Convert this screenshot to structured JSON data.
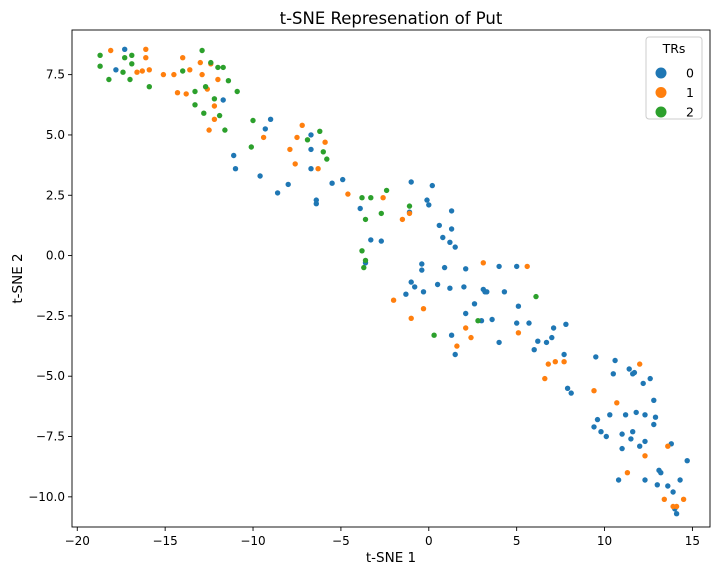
{
  "chart_data": {
    "type": "scatter",
    "title": "t-SNE Represenation of Put",
    "xlabel": "t-SNE 1",
    "ylabel": "t-SNE 2",
    "xlim": [
      -20.3,
      16.0
    ],
    "ylim": [
      -11.25,
      9.35
    ],
    "xticks": [
      -20,
      -15,
      -10,
      -5,
      0,
      5,
      10,
      15
    ],
    "xtick_labels": [
      "−20",
      "−15",
      "−10",
      "−5",
      "0",
      "5",
      "10",
      "15"
    ],
    "yticks": [
      -10.0,
      -7.5,
      -5.0,
      -2.5,
      0.0,
      2.5,
      5.0,
      7.5
    ],
    "ytick_labels": [
      "−10.0",
      "−7.5",
      "−5.0",
      "−2.5",
      "0.0",
      "2.5",
      "5.0",
      "7.5"
    ],
    "grid": false,
    "legend": {
      "title": "TRs",
      "position": "top-right"
    },
    "series": [
      {
        "name": "0",
        "color": "#1f77b4",
        "points": [
          [
            -17.3,
            8.55
          ],
          [
            -17.8,
            7.7
          ],
          [
            -11.7,
            6.45
          ],
          [
            -11.1,
            4.15
          ],
          [
            -11.0,
            3.6
          ],
          [
            -9.6,
            3.3
          ],
          [
            -9.0,
            5.65
          ],
          [
            -9.3,
            5.25
          ],
          [
            -8.6,
            2.6
          ],
          [
            -8.0,
            2.95
          ],
          [
            -6.7,
            5.0
          ],
          [
            -6.7,
            4.4
          ],
          [
            -6.7,
            3.6
          ],
          [
            -6.4,
            2.15
          ],
          [
            -6.4,
            2.3
          ],
          [
            -5.5,
            3.0
          ],
          [
            -4.9,
            3.15
          ],
          [
            -3.9,
            1.95
          ],
          [
            -3.3,
            0.65
          ],
          [
            -2.7,
            0.6
          ],
          [
            -3.6,
            -0.3
          ],
          [
            -1.3,
            -1.6
          ],
          [
            -1.0,
            -1.1
          ],
          [
            -0.8,
            -1.3
          ],
          [
            -0.4,
            -0.6
          ],
          [
            -0.3,
            -1.5
          ],
          [
            -1.1,
            1.8
          ],
          [
            -1.0,
            3.05
          ],
          [
            0.2,
            2.9
          ],
          [
            -0.1,
            2.3
          ],
          [
            0.0,
            2.1
          ],
          [
            0.6,
            1.25
          ],
          [
            0.8,
            0.75
          ],
          [
            1.3,
            1.1
          ],
          [
            1.3,
            1.85
          ],
          [
            1.2,
            0.55
          ],
          [
            1.5,
            0.35
          ],
          [
            0.9,
            -0.5
          ],
          [
            -0.4,
            -0.35
          ],
          [
            0.5,
            -1.2
          ],
          [
            1.2,
            -1.35
          ],
          [
            2.1,
            -0.55
          ],
          [
            2.0,
            -1.3
          ],
          [
            2.1,
            -2.4
          ],
          [
            2.6,
            -2.0
          ],
          [
            3.0,
            -2.7
          ],
          [
            3.2,
            -1.5
          ],
          [
            3.1,
            -1.4
          ],
          [
            3.3,
            -1.5
          ],
          [
            3.6,
            -2.65
          ],
          [
            4.0,
            -0.45
          ],
          [
            4.3,
            -1.5
          ],
          [
            5.0,
            -0.45
          ],
          [
            5.1,
            -2.1
          ],
          [
            5.0,
            -2.8
          ],
          [
            5.7,
            -2.8
          ],
          [
            6.0,
            -3.9
          ],
          [
            6.2,
            -3.55
          ],
          [
            6.7,
            -3.6
          ],
          [
            7.0,
            -3.4
          ],
          [
            7.1,
            -3.0
          ],
          [
            7.8,
            -2.85
          ],
          [
            7.7,
            -4.1
          ],
          [
            7.9,
            -5.5
          ],
          [
            8.1,
            -5.7
          ],
          [
            4.0,
            -3.6
          ],
          [
            1.3,
            -3.3
          ],
          [
            1.5,
            -4.1
          ],
          [
            9.5,
            -4.2
          ],
          [
            9.4,
            -7.1
          ],
          [
            9.6,
            -6.8
          ],
          [
            9.8,
            -7.3
          ],
          [
            10.1,
            -7.5
          ],
          [
            10.3,
            -6.6
          ],
          [
            10.5,
            -4.9
          ],
          [
            10.6,
            -4.35
          ],
          [
            10.8,
            -9.3
          ],
          [
            11.0,
            -7.4
          ],
          [
            11.0,
            -8.0
          ],
          [
            11.2,
            -6.6
          ],
          [
            11.4,
            -4.7
          ],
          [
            11.6,
            -4.9
          ],
          [
            11.5,
            -7.6
          ],
          [
            11.6,
            -7.3
          ],
          [
            11.7,
            -4.85
          ],
          [
            11.8,
            -6.5
          ],
          [
            12.0,
            -7.9
          ],
          [
            12.2,
            -5.3
          ],
          [
            12.3,
            -7.7
          ],
          [
            12.3,
            -9.3
          ],
          [
            12.3,
            -6.6
          ],
          [
            12.6,
            -5.1
          ],
          [
            12.8,
            -7.0
          ],
          [
            12.8,
            -6.0
          ],
          [
            12.9,
            -6.7
          ],
          [
            13.1,
            -8.9
          ],
          [
            13.2,
            -9.0
          ],
          [
            13.0,
            -9.5
          ],
          [
            13.6,
            -9.55
          ],
          [
            13.8,
            -7.8
          ],
          [
            13.9,
            -9.8
          ],
          [
            14.0,
            -10.5
          ],
          [
            14.1,
            -10.7
          ],
          [
            14.3,
            -9.3
          ],
          [
            14.7,
            -8.5
          ]
        ]
      },
      {
        "name": "1",
        "color": "#ff7f0e",
        "points": [
          [
            -18.1,
            8.5
          ],
          [
            -16.6,
            7.6
          ],
          [
            -16.3,
            7.65
          ],
          [
            -16.1,
            8.55
          ],
          [
            -16.1,
            8.2
          ],
          [
            -15.9,
            7.7
          ],
          [
            -15.1,
            7.5
          ],
          [
            -14.5,
            7.5
          ],
          [
            -14.3,
            6.75
          ],
          [
            -14.0,
            8.2
          ],
          [
            -13.8,
            6.7
          ],
          [
            -13.6,
            7.7
          ],
          [
            -13.0,
            8.0
          ],
          [
            -12.9,
            7.5
          ],
          [
            -12.6,
            6.9
          ],
          [
            -12.5,
            5.2
          ],
          [
            -12.2,
            6.2
          ],
          [
            -12.2,
            5.65
          ],
          [
            -12.0,
            7.3
          ],
          [
            -12.4,
            7.95
          ],
          [
            -9.4,
            4.9
          ],
          [
            -7.9,
            4.4
          ],
          [
            -7.6,
            3.8
          ],
          [
            -7.5,
            4.9
          ],
          [
            -7.2,
            5.4
          ],
          [
            -6.3,
            3.6
          ],
          [
            -5.9,
            4.7
          ],
          [
            -4.6,
            2.55
          ],
          [
            -2.6,
            2.4
          ],
          [
            -1.5,
            1.5
          ],
          [
            -1.1,
            1.75
          ],
          [
            -2.0,
            -1.85
          ],
          [
            -1.0,
            -2.6
          ],
          [
            -0.3,
            -2.2
          ],
          [
            1.6,
            -3.75
          ],
          [
            2.1,
            -3.0
          ],
          [
            2.4,
            -3.4
          ],
          [
            3.1,
            -0.3
          ],
          [
            5.1,
            -3.2
          ],
          [
            5.6,
            -0.45
          ],
          [
            6.6,
            -5.1
          ],
          [
            6.8,
            -4.5
          ],
          [
            7.2,
            -4.4
          ],
          [
            7.7,
            -4.4
          ],
          [
            9.4,
            -5.6
          ],
          [
            10.7,
            -6.1
          ],
          [
            11.3,
            -9.0
          ],
          [
            12.0,
            -4.5
          ],
          [
            12.3,
            -8.3
          ],
          [
            13.4,
            -10.1
          ],
          [
            13.6,
            -7.9
          ],
          [
            13.9,
            -10.4
          ],
          [
            14.1,
            -10.4
          ],
          [
            14.5,
            -10.1
          ]
        ]
      },
      {
        "name": "2",
        "color": "#2ca02c",
        "points": [
          [
            -18.7,
            8.3
          ],
          [
            -18.7,
            7.85
          ],
          [
            -18.2,
            7.3
          ],
          [
            -17.4,
            7.6
          ],
          [
            -17.3,
            8.2
          ],
          [
            -17.0,
            7.3
          ],
          [
            -16.9,
            8.3
          ],
          [
            -16.9,
            7.95
          ],
          [
            -15.9,
            7.0
          ],
          [
            -14.0,
            7.65
          ],
          [
            -13.3,
            6.25
          ],
          [
            -13.3,
            6.8
          ],
          [
            -12.9,
            8.5
          ],
          [
            -12.8,
            5.9
          ],
          [
            -12.7,
            7.0
          ],
          [
            -12.4,
            8.0
          ],
          [
            -12.2,
            6.5
          ],
          [
            -12.0,
            7.8
          ],
          [
            -11.9,
            5.8
          ],
          [
            -11.7,
            7.8
          ],
          [
            -11.6,
            5.2
          ],
          [
            -11.4,
            7.25
          ],
          [
            -10.9,
            6.8
          ],
          [
            -10.1,
            4.5
          ],
          [
            -10.0,
            5.6
          ],
          [
            -6.9,
            4.8
          ],
          [
            -6.2,
            5.15
          ],
          [
            -6.0,
            4.3
          ],
          [
            -5.8,
            4.0
          ],
          [
            -3.8,
            2.4
          ],
          [
            -3.3,
            2.4
          ],
          [
            -2.7,
            1.75
          ],
          [
            -2.4,
            2.7
          ],
          [
            -3.6,
            1.5
          ],
          [
            -3.8,
            0.2
          ],
          [
            -3.6,
            -0.2
          ],
          [
            -3.7,
            -0.5
          ],
          [
            -1.1,
            2.05
          ],
          [
            0.3,
            -3.3
          ],
          [
            2.8,
            -2.7
          ],
          [
            6.1,
            -1.7
          ]
        ]
      }
    ]
  }
}
